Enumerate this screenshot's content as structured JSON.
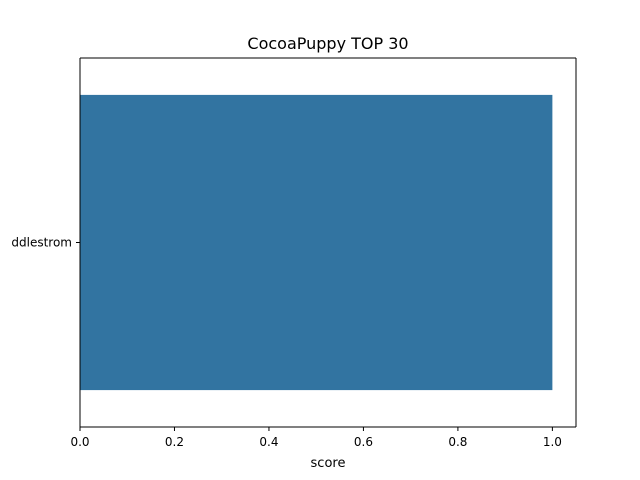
{
  "chart_data": {
    "type": "bar",
    "orientation": "horizontal",
    "title": "CocoaPuppy TOP 30",
    "xlabel": "score",
    "ylabel": "",
    "categories": [
      "ddlestrom"
    ],
    "values": [
      1.0
    ],
    "xlim": [
      0,
      1.05
    ],
    "xticks": [
      0.0,
      0.2,
      0.4,
      0.6,
      0.8,
      1.0
    ],
    "xtick_labels": [
      "0.0",
      "0.2",
      "0.4",
      "0.6",
      "0.8",
      "1.0"
    ],
    "grid": false,
    "legend": "none",
    "bar_color": "#3274a1"
  }
}
